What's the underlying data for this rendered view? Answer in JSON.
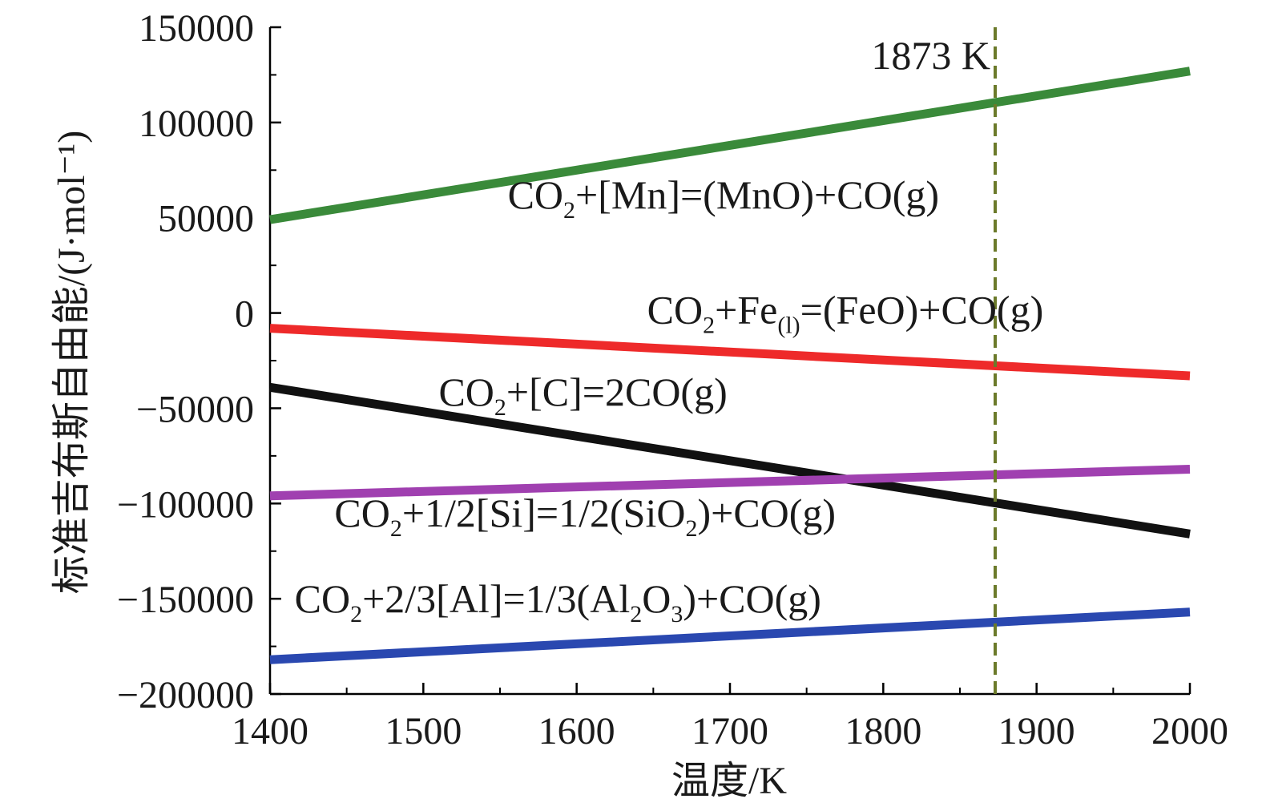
{
  "chart_data": {
    "type": "line",
    "title": "",
    "xlabel": "温度/K",
    "ylabel": "标准吉布斯自由能/(J·mol⁻¹)",
    "xlim": [
      1400,
      2000
    ],
    "ylim": [
      -200000,
      150000
    ],
    "x_ticks": [
      1400,
      1500,
      1600,
      1700,
      1800,
      1900,
      2000
    ],
    "y_ticks": [
      -200000,
      -150000,
      -100000,
      -50000,
      0,
      50000,
      100000,
      150000
    ],
    "x_tick_labels": [
      "1400",
      "1500",
      "1600",
      "1700",
      "1800",
      "1900",
      "2000"
    ],
    "y_tick_labels": [
      "−200000",
      "−150000",
      "−100000",
      "−50000",
      "0",
      "50000",
      "100000",
      "150000"
    ],
    "grid": false,
    "legend": "none",
    "reference_line": {
      "x": 1873,
      "label": "1873 K",
      "style": "dashed",
      "color": "#6b7a2a"
    },
    "series": [
      {
        "name": "CO2+[Mn]=(MnO)+CO(g)",
        "label_parts": [
          [
            "CO",
            ""
          ],
          [
            "2",
            "sub"
          ],
          [
            "+[Mn]=(MnO)+CO(g)",
            ""
          ]
        ],
        "color": "#3a8a3a",
        "x": [
          1400,
          2000
        ],
        "y": [
          49000,
          127000
        ],
        "label_anchor": {
          "x": 1555,
          "y": 55000
        }
      },
      {
        "name": "CO2+Fe(l)=(FeO)+CO(g)",
        "label_parts": [
          [
            "CO",
            ""
          ],
          [
            "2",
            "sub"
          ],
          [
            "+Fe",
            ""
          ],
          [
            "(l)",
            "sub"
          ],
          [
            "=(FeO)+CO(g)",
            ""
          ]
        ],
        "color": "#ee2a2a",
        "x": [
          1400,
          2000
        ],
        "y": [
          -8000,
          -33000
        ],
        "label_anchor": {
          "x": 1646,
          "y": -5500
        }
      },
      {
        "name": "CO2+[C]=2CO(g)",
        "label_parts": [
          [
            "CO",
            ""
          ],
          [
            "2",
            "sub"
          ],
          [
            "+[C]=2CO(g)",
            ""
          ]
        ],
        "color": "#111111",
        "x": [
          1400,
          2000
        ],
        "y": [
          -39000,
          -116000
        ],
        "label_anchor": {
          "x": 1510,
          "y": -48500
        }
      },
      {
        "name": "CO2+1/2[Si]=1/2(SiO2)+CO(g)",
        "label_parts": [
          [
            "CO",
            ""
          ],
          [
            "2",
            "sub"
          ],
          [
            "+1/2[Si]=1/2(SiO",
            ""
          ],
          [
            "2",
            "sub"
          ],
          [
            ")+CO(g)",
            ""
          ]
        ],
        "color": "#a040b0",
        "x": [
          1400,
          2000
        ],
        "y": [
          -96000,
          -82000
        ],
        "label_anchor": {
          "x": 1442,
          "y": -112000
        }
      },
      {
        "name": "CO2+2/3[Al]=1/3(Al2O3)+CO(g)",
        "label_parts": [
          [
            "CO",
            ""
          ],
          [
            "2",
            "sub"
          ],
          [
            "+2/3[Al]=1/3(Al",
            ""
          ],
          [
            "2",
            "sub"
          ],
          [
            "O",
            ""
          ],
          [
            "3",
            "sub"
          ],
          [
            ")+CO(g)",
            ""
          ]
        ],
        "color": "#2a48b0",
        "x": [
          1400,
          2000
        ],
        "y": [
          -182000,
          -157000
        ],
        "label_anchor": {
          "x": 1416,
          "y": -157000
        }
      }
    ]
  }
}
